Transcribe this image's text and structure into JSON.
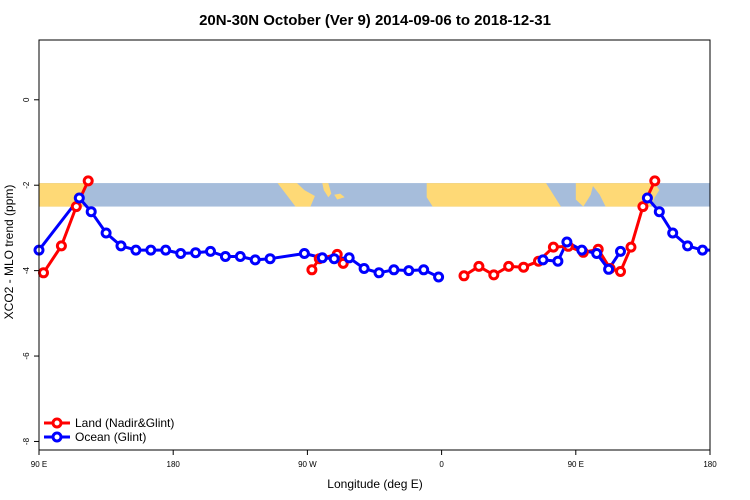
{
  "chart_data": {
    "type": "line",
    "title": "20N-30N October (Ver 9)   2014-09-06 to 2018-12-31",
    "xlabel": "Longitude (deg E)",
    "ylabel": "XCO2 - MLO trend (ppm)",
    "xlim": [
      90,
      540
    ],
    "ylim": [
      -8.2,
      1.4
    ],
    "x_ticks": [
      {
        "value": 90,
        "label": "90 E"
      },
      {
        "value": 180,
        "label": "180"
      },
      {
        "value": 270,
        "label": "90 W"
      },
      {
        "value": 360,
        "label": "0"
      },
      {
        "value": 450,
        "label": "90 E"
      },
      {
        "value": 540,
        "label": "180"
      }
    ],
    "y_ticks": [
      {
        "value": 0,
        "label": "0"
      },
      {
        "value": -2,
        "label": "-2"
      },
      {
        "value": -4,
        "label": "-4"
      },
      {
        "value": -6,
        "label": "-6"
      },
      {
        "value": -8,
        "label": "-8"
      }
    ],
    "map_band": {
      "ymin": -2.5,
      "ymax": -1.95,
      "ocean_color": "#a6bddb",
      "land_color": "#fed976"
    },
    "legend_position": "bottom-left",
    "series": [
      {
        "name": "Land (Nadir&Glint)",
        "color": "#ff0000",
        "segments": [
          [
            [
              93,
              -4.05
            ],
            [
              105,
              -3.42
            ],
            [
              115,
              -2.5
            ],
            [
              123,
              -1.9
            ]
          ],
          [
            [
              273,
              -3.98
            ],
            [
              278,
              -3.72
            ],
            [
              290,
              -3.62
            ],
            [
              294,
              -3.83
            ]
          ],
          [
            [
              375,
              -4.12
            ],
            [
              385,
              -3.9
            ],
            [
              395,
              -4.1
            ],
            [
              405,
              -3.9
            ],
            [
              415,
              -3.92
            ],
            [
              425,
              -3.78
            ],
            [
              435,
              -3.45
            ],
            [
              445,
              -3.43
            ],
            [
              455,
              -3.57
            ],
            [
              465,
              -3.5
            ],
            [
              473,
              -3.95
            ],
            [
              480,
              -4.02
            ],
            [
              487,
              -3.45
            ],
            [
              495,
              -2.5
            ],
            [
              503,
              -1.9
            ]
          ]
        ]
      },
      {
        "name": "Ocean (Glint)",
        "color": "#0000ff",
        "segments": [
          [
            [
              90,
              -3.52
            ],
            [
              117,
              -2.3
            ],
            [
              125,
              -2.62
            ],
            [
              135,
              -3.12
            ],
            [
              145,
              -3.42
            ],
            [
              155,
              -3.52
            ],
            [
              165,
              -3.52
            ],
            [
              175,
              -3.52
            ],
            [
              185,
              -3.6
            ],
            [
              195,
              -3.58
            ],
            [
              205,
              -3.55
            ],
            [
              215,
              -3.67
            ],
            [
              225,
              -3.67
            ],
            [
              235,
              -3.75
            ],
            [
              245,
              -3.72
            ],
            [
              268,
              -3.6
            ],
            [
              280,
              -3.7
            ],
            [
              288,
              -3.72
            ],
            [
              298,
              -3.7
            ],
            [
              308,
              -3.95
            ],
            [
              318,
              -4.05
            ],
            [
              328,
              -3.98
            ],
            [
              338,
              -4.0
            ],
            [
              348,
              -3.98
            ],
            [
              358,
              -4.15
            ]
          ],
          [
            [
              428,
              -3.75
            ],
            [
              438,
              -3.78
            ],
            [
              444,
              -3.33
            ],
            [
              454,
              -3.52
            ],
            [
              464,
              -3.6
            ],
            [
              472,
              -3.97
            ],
            [
              480,
              -3.55
            ]
          ],
          [
            [
              498,
              -2.3
            ],
            [
              506,
              -2.62
            ],
            [
              515,
              -3.12
            ],
            [
              525,
              -3.42
            ],
            [
              535,
              -3.52
            ],
            [
              545,
              -3.52
            ],
            [
              555,
              -3.52
            ]
          ]
        ]
      }
    ]
  }
}
